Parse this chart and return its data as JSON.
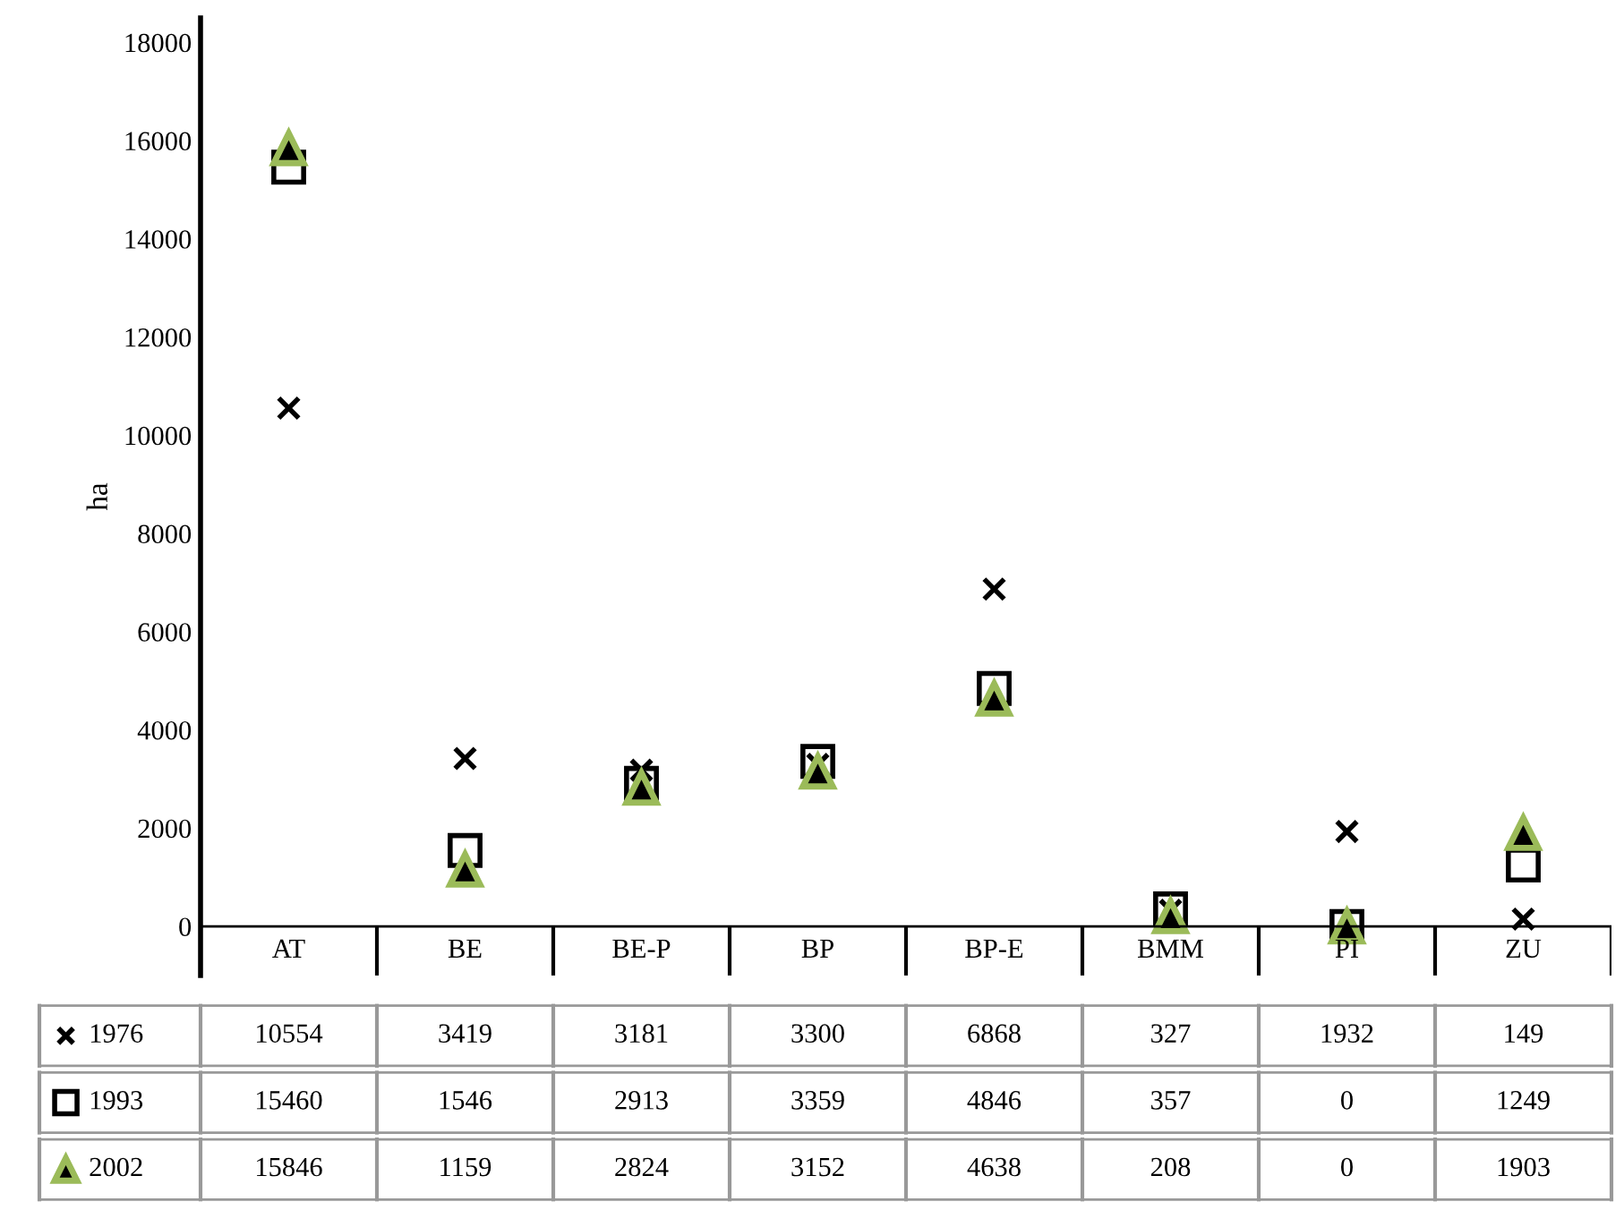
{
  "chart_data": {
    "type": "scatter",
    "ylabel": "ha",
    "categories": [
      "AT",
      "BE",
      "BE-P",
      "BP",
      "BP-E",
      "BMM",
      "PI",
      "ZU"
    ],
    "series": [
      {
        "name": "1976",
        "color": "#000000",
        "marker": "cross",
        "values": [
          10554,
          3419,
          3181,
          3300,
          6868,
          327,
          1932,
          149
        ]
      },
      {
        "name": "1993",
        "color": "#000000",
        "marker": "square",
        "values": [
          15460,
          1546,
          2913,
          3359,
          4846,
          357,
          0,
          1249
        ]
      },
      {
        "name": "2002",
        "color": "#9bbb59",
        "marker": "triangle",
        "values": [
          15846,
          1159,
          2824,
          3152,
          4638,
          208,
          0,
          1903
        ]
      }
    ],
    "ylim": [
      -1000,
      18500
    ],
    "yticks": [
      0,
      2000,
      4000,
      6000,
      8000,
      10000,
      12000,
      14000,
      16000,
      18000
    ],
    "grid": false,
    "legend": "bottom left",
    "data_labels": true
  }
}
